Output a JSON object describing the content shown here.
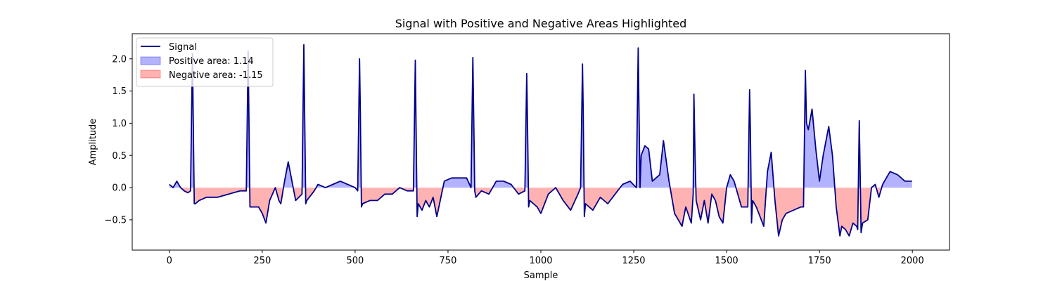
{
  "chart_data": {
    "type": "area",
    "title": "Signal with Positive and Negative Areas Highlighted",
    "xlabel": "Sample",
    "ylabel": "Amplitude",
    "xlim": [
      -100,
      2100
    ],
    "ylim": [
      -0.97,
      2.39
    ],
    "xticks": [
      0,
      250,
      500,
      750,
      1000,
      1250,
      1500,
      1750,
      2000
    ],
    "yticks": [
      -0.5,
      0.0,
      0.5,
      1.0,
      1.5,
      2.0
    ],
    "xtick_labels": [
      "0",
      "250",
      "500",
      "750",
      "1000",
      "1250",
      "1500",
      "1750",
      "2000"
    ],
    "ytick_labels": [
      "−0.5",
      "0.0",
      "0.5",
      "1.0",
      "1.5",
      "2.0"
    ],
    "legend_position": "upper-left",
    "colors": {
      "signal": "#00008b",
      "positive_fill": "#0000ff",
      "negative_fill": "#ff0000",
      "fill_alpha": 0.3
    },
    "series": [
      {
        "name": "Signal",
        "x": [
          0,
          10,
          20,
          30,
          40,
          50,
          57,
          62,
          64,
          67,
          70,
          80,
          100,
          130,
          160,
          190,
          207,
          212,
          214,
          217,
          220,
          240,
          250,
          260,
          270,
          285,
          295,
          300,
          310,
          320,
          330,
          340,
          357,
          362,
          364,
          367,
          370,
          390,
          400,
          420,
          440,
          460,
          480,
          500,
          507,
          512,
          514,
          517,
          520,
          540,
          560,
          580,
          600,
          620,
          640,
          657,
          662,
          664,
          667,
          670,
          680,
          690,
          700,
          710,
          720,
          740,
          760,
          780,
          800,
          812,
          817,
          819,
          822,
          825,
          840,
          860,
          880,
          900,
          920,
          940,
          957,
          962,
          964,
          967,
          970,
          990,
          1000,
          1020,
          1040,
          1060,
          1080,
          1100,
          1107,
          1112,
          1114,
          1117,
          1120,
          1140,
          1160,
          1180,
          1200,
          1220,
          1240,
          1257,
          1262,
          1264,
          1267,
          1270,
          1280,
          1290,
          1300,
          1320,
          1330,
          1345,
          1360,
          1380,
          1390,
          1405,
          1410,
          1412,
          1415,
          1418,
          1430,
          1440,
          1450,
          1460,
          1470,
          1480,
          1490,
          1500,
          1510,
          1520,
          1540,
          1557,
          1562,
          1564,
          1567,
          1570,
          1580,
          1600,
          1610,
          1620,
          1630,
          1640,
          1650,
          1660,
          1680,
          1700,
          1707,
          1712,
          1715,
          1720,
          1730,
          1740,
          1750,
          1760,
          1775,
          1785,
          1795,
          1805,
          1810,
          1820,
          1830,
          1840,
          1850,
          1853,
          1857,
          1859,
          1862,
          1866,
          1880,
          1890,
          1900,
          1910,
          1920,
          1940,
          1960,
          1980,
          1999
        ],
        "y": [
          0.05,
          0.0,
          0.1,
          0.0,
          -0.05,
          -0.08,
          -0.05,
          2.08,
          1.2,
          -0.25,
          -0.25,
          -0.2,
          -0.15,
          -0.15,
          -0.1,
          -0.05,
          -0.05,
          2.12,
          1.2,
          -0.3,
          -0.3,
          -0.3,
          -0.4,
          -0.55,
          -0.2,
          0.0,
          -0.2,
          -0.25,
          0.1,
          0.4,
          0.1,
          -0.2,
          -0.1,
          2.22,
          1.2,
          -0.25,
          -0.2,
          -0.05,
          0.05,
          0.0,
          0.05,
          0.1,
          0.05,
          0.0,
          -0.05,
          2.0,
          1.2,
          -0.3,
          -0.25,
          -0.2,
          -0.2,
          -0.1,
          -0.1,
          0.0,
          -0.05,
          -0.05,
          1.98,
          1.0,
          -0.45,
          -0.25,
          -0.35,
          -0.2,
          -0.3,
          -0.15,
          -0.45,
          0.1,
          0.15,
          0.15,
          0.15,
          0.0,
          2.02,
          1.2,
          -0.05,
          -0.15,
          -0.05,
          -0.1,
          0.1,
          0.1,
          0.05,
          -0.1,
          -0.05,
          1.77,
          1.0,
          -0.3,
          -0.2,
          -0.3,
          -0.4,
          -0.1,
          0.0,
          -0.2,
          -0.35,
          -0.1,
          0.0,
          1.92,
          1.2,
          -0.45,
          -0.25,
          -0.35,
          -0.15,
          -0.25,
          -0.1,
          0.05,
          0.1,
          0.0,
          2.17,
          1.3,
          0.0,
          0.5,
          0.65,
          0.6,
          0.1,
          0.2,
          0.73,
          0.1,
          -0.4,
          -0.6,
          -0.3,
          -0.55,
          -0.1,
          1.45,
          0.5,
          -0.2,
          -0.5,
          -0.2,
          -0.55,
          -0.1,
          -0.2,
          -0.45,
          -0.55,
          0.0,
          0.2,
          0.1,
          -0.3,
          -0.3,
          1.52,
          0.9,
          -0.55,
          -0.2,
          -0.3,
          -0.6,
          0.25,
          0.55,
          -0.2,
          -0.75,
          -0.5,
          -0.4,
          -0.35,
          -0.3,
          -0.3,
          1.82,
          1.0,
          0.9,
          1.22,
          0.6,
          0.1,
          0.5,
          0.95,
          0.5,
          -0.3,
          -0.75,
          -0.6,
          -0.65,
          -0.75,
          -0.55,
          -0.6,
          -0.65,
          1.04,
          0.4,
          -0.7,
          -0.55,
          -0.5,
          0.0,
          0.05,
          -0.15,
          0.05,
          0.25,
          0.2,
          0.1,
          0.1
        ]
      }
    ],
    "legend": [
      {
        "label": "Signal",
        "kind": "line"
      },
      {
        "label": "Positive area: 1.14",
        "kind": "positive-fill"
      },
      {
        "label": "Negative area: -1.15",
        "kind": "negative-fill"
      }
    ]
  }
}
